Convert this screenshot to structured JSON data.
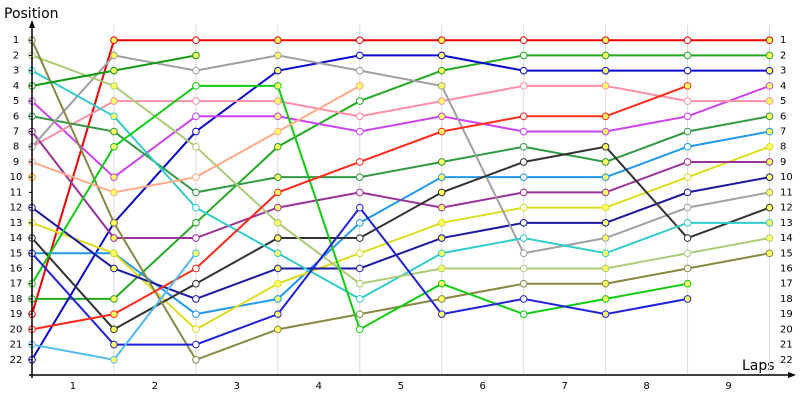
{
  "chart_data": {
    "type": "line",
    "title": "Position",
    "x_label": "Laps",
    "x": [
      0,
      1,
      2,
      3,
      4,
      5,
      6,
      7,
      8,
      9
    ],
    "xlim": [
      0,
      9.25
    ],
    "xticks": [
      {
        "value": 0.5,
        "label": "1"
      },
      {
        "value": 1.5,
        "label": "2"
      },
      {
        "value": 2.5,
        "label": "3"
      },
      {
        "value": 3.5,
        "label": "4"
      },
      {
        "value": 4.5,
        "label": "5"
      },
      {
        "value": 5.5,
        "label": "6"
      },
      {
        "value": 6.5,
        "label": "7"
      },
      {
        "value": 7.5,
        "label": "8"
      },
      {
        "value": 8.5,
        "label": "9"
      }
    ],
    "ylim": [
      23,
      0
    ],
    "yticks": [
      1,
      2,
      3,
      4,
      5,
      6,
      7,
      8,
      9,
      10,
      11,
      12,
      13,
      14,
      15,
      16,
      17,
      18,
      19,
      20,
      21,
      22
    ],
    "grid": true,
    "series": [
      {
        "color": "#ee0000",
        "values": [
          19,
          1,
          1,
          1,
          1,
          1,
          1,
          1,
          1,
          1
        ]
      },
      {
        "color": "#22aa22",
        "values": [
          18,
          18,
          13,
          8,
          5,
          3,
          2,
          2,
          2,
          2
        ]
      },
      {
        "color": "#0a0ad0",
        "values": [
          22,
          13,
          7,
          3,
          2,
          2,
          3,
          3,
          3,
          3
        ]
      },
      {
        "color": "#cc44ee",
        "values": [
          5,
          10,
          6,
          6,
          7,
          6,
          7,
          7,
          6,
          4
        ]
      },
      {
        "color": "#ff8fa8",
        "values": [
          8,
          5,
          5,
          5,
          6,
          5,
          4,
          4,
          5,
          5
        ]
      },
      {
        "color": "#339944",
        "values": [
          6,
          7,
          11,
          10,
          10,
          9,
          8,
          9,
          7,
          6
        ]
      },
      {
        "color": "#2299ee",
        "values": [
          15,
          15,
          19,
          18,
          13,
          10,
          10,
          10,
          8,
          7
        ]
      },
      {
        "color": "#dddd22",
        "values": [
          13,
          15,
          20,
          17,
          15,
          13,
          12,
          12,
          10,
          8
        ]
      },
      {
        "color": "#993399",
        "values": [
          7,
          14,
          14,
          12,
          11,
          12,
          11,
          11,
          9,
          9
        ]
      },
      {
        "color": "#1a1aa0",
        "values": [
          12,
          16,
          18,
          16,
          16,
          14,
          13,
          13,
          11,
          10
        ]
      },
      {
        "color": "#a0a0a0",
        "values": [
          8,
          2,
          3,
          2,
          3,
          4,
          15,
          14,
          12,
          11
        ]
      },
      {
        "color": "#333333",
        "values": [
          14,
          20,
          17,
          14,
          14,
          11,
          9,
          8,
          14,
          12
        ]
      },
      {
        "color": "#33cccc",
        "values": [
          3,
          6,
          12,
          15,
          18,
          15,
          14,
          15,
          13,
          13
        ]
      },
      {
        "color": "#aacc77",
        "values": [
          2,
          4,
          8,
          13,
          17,
          16,
          16,
          16,
          15,
          14
        ]
      },
      {
        "color": "#888844",
        "values": [
          1,
          13,
          22,
          20,
          19,
          18,
          17,
          17,
          16,
          15
        ]
      },
      {
        "color": "#11cc11",
        "values": [
          17,
          8,
          4,
          4,
          20,
          17,
          19,
          18,
          17,
          null
        ]
      },
      {
        "color": "#2222dd",
        "values": [
          15,
          21,
          21,
          19,
          12,
          19,
          18,
          19,
          18,
          null
        ]
      },
      {
        "color": "#ff2a1a",
        "values": [
          20,
          19,
          16,
          11,
          9,
          7,
          6,
          6,
          4,
          null
        ]
      },
      {
        "color": "#ffaa88",
        "values": [
          9,
          11,
          10,
          7,
          4,
          null,
          null,
          null,
          null,
          null
        ]
      },
      {
        "color": "#119911",
        "values": [
          4,
          3,
          2,
          null,
          null,
          null,
          null,
          null,
          null,
          null
        ]
      },
      {
        "color": "#55bbee",
        "values": [
          21,
          22,
          15,
          null,
          null,
          null,
          null,
          null,
          null,
          null
        ]
      },
      {
        "color": "#ff9900",
        "values": [
          10,
          null,
          null,
          null,
          null,
          null,
          null,
          null,
          null,
          null
        ]
      }
    ]
  }
}
